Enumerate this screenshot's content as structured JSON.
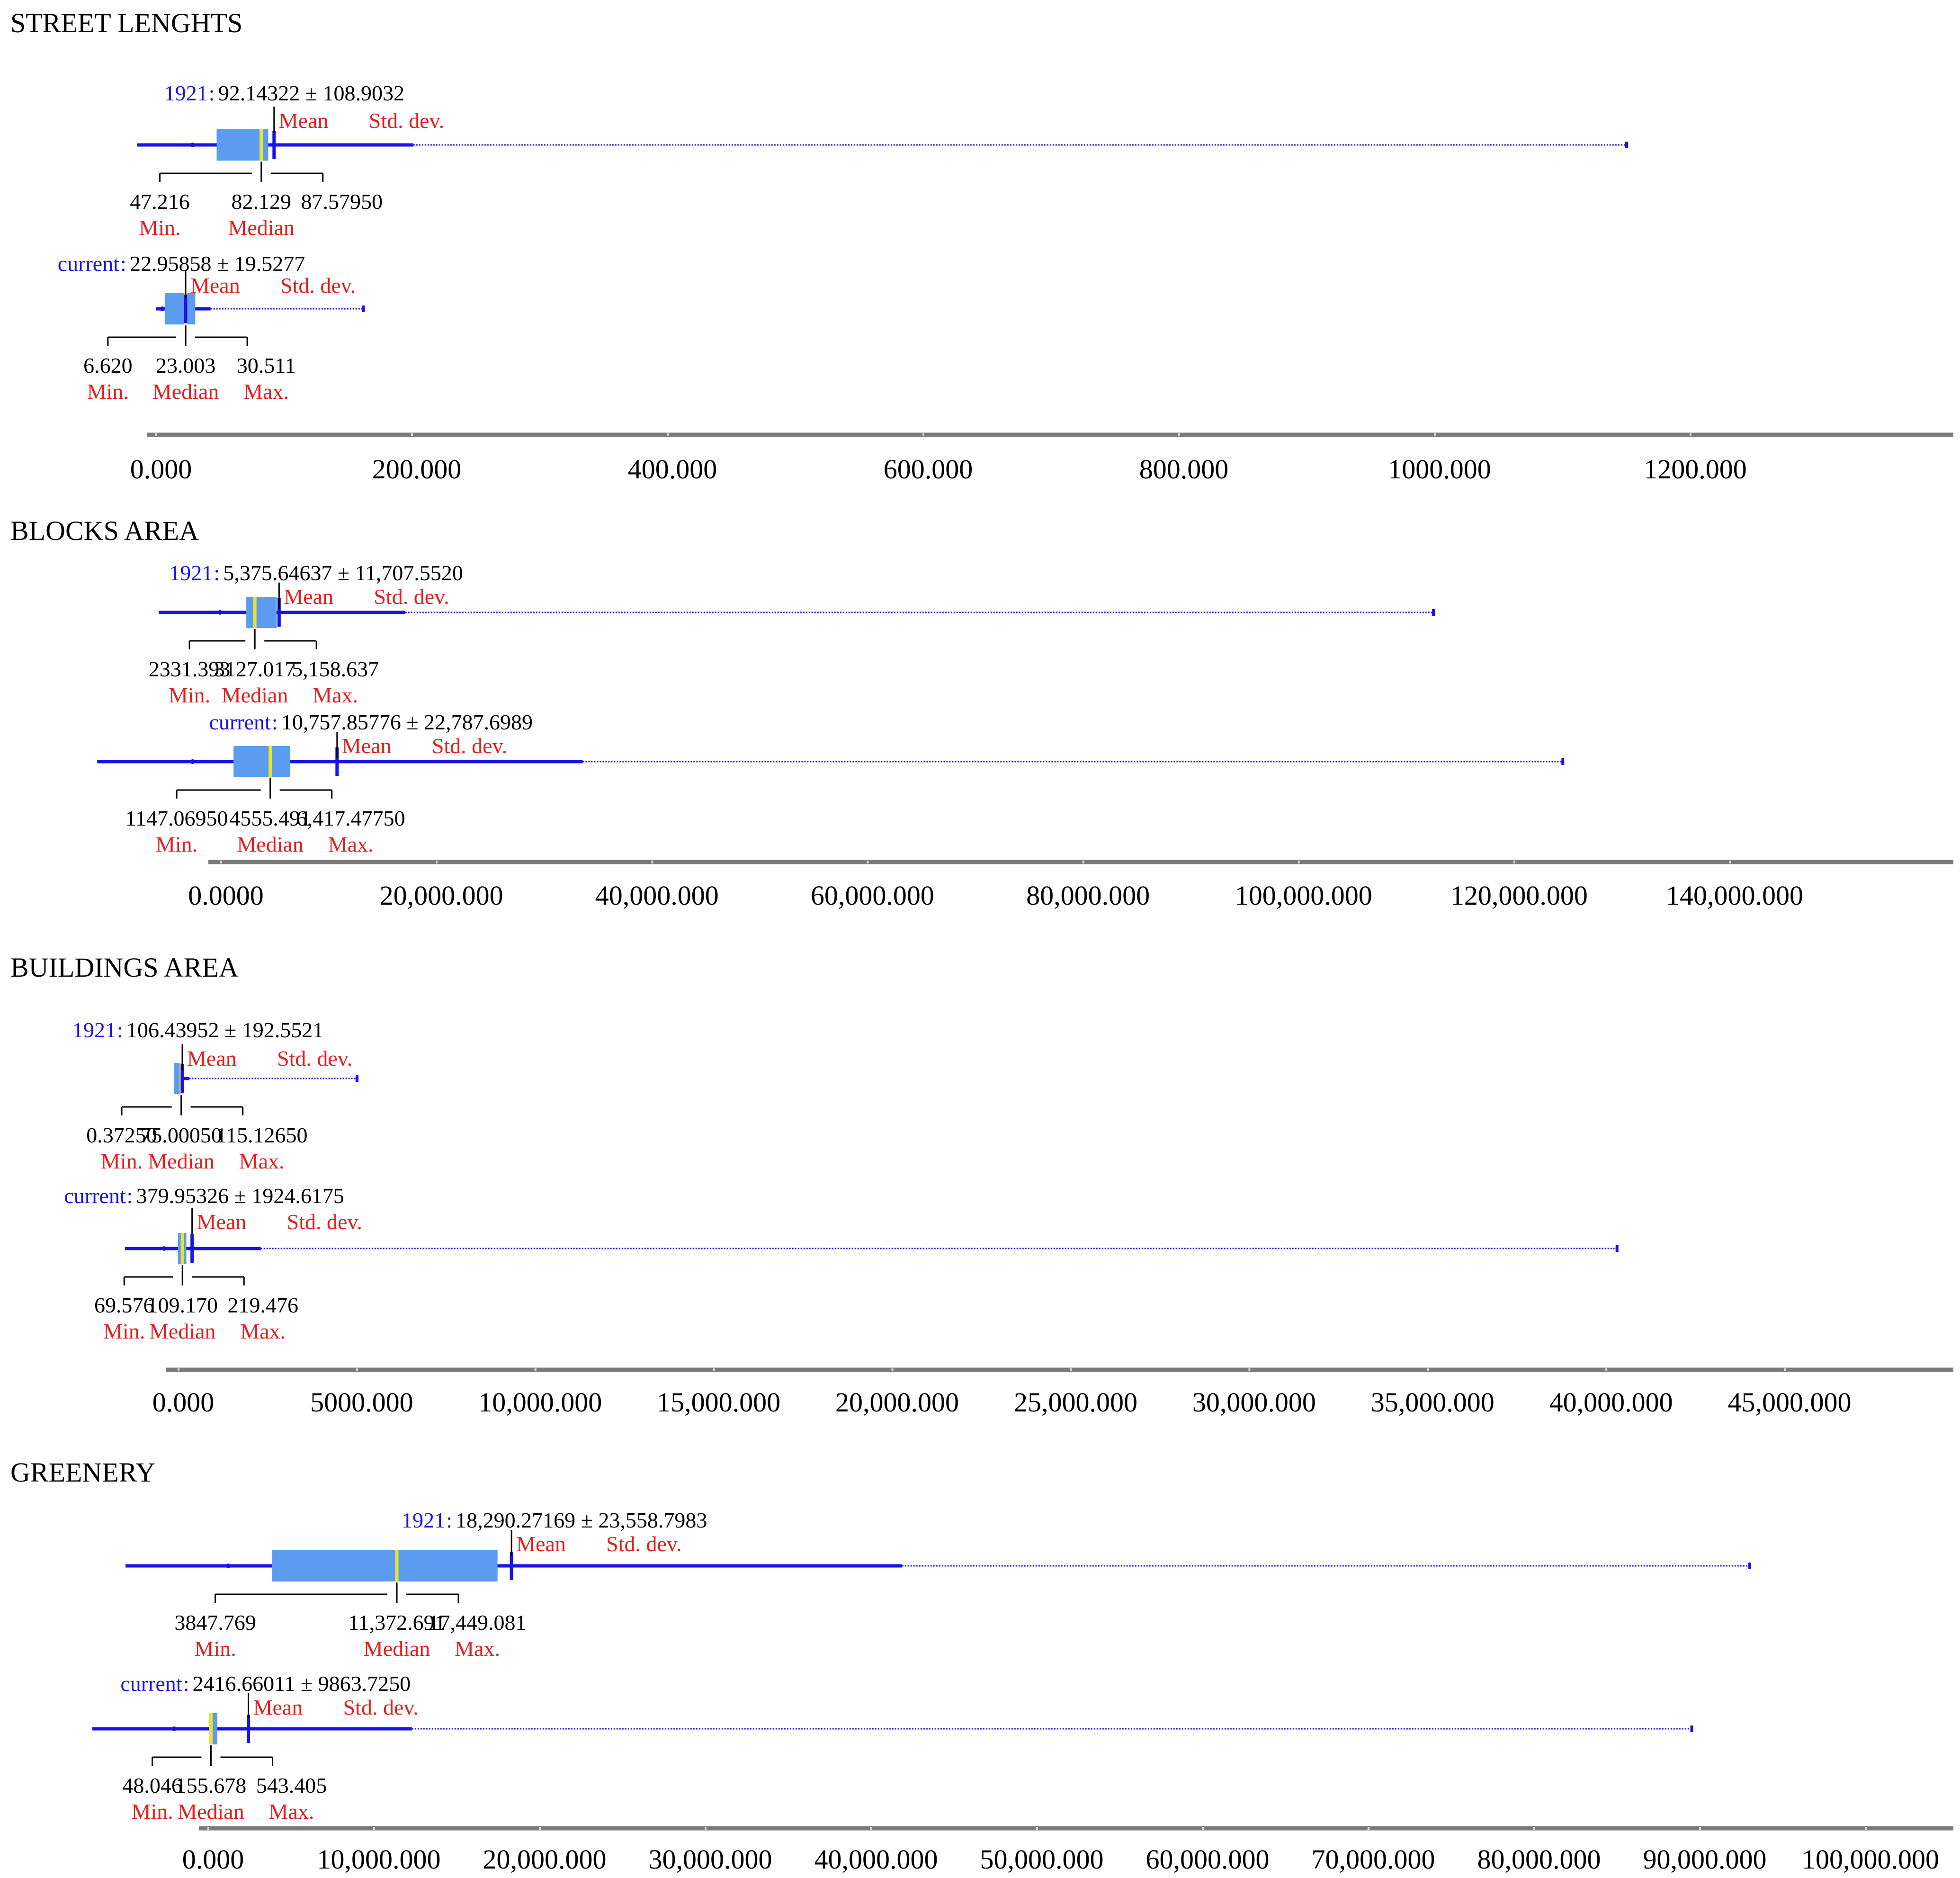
{
  "colors": {
    "whisker": "#1a12e6",
    "box": "#5b9cf0",
    "median_line": "#e6e630",
    "label_red": "#e31e1e",
    "label_blue": "#1a12e6",
    "text": "#000000",
    "axis": "#7a7a7a"
  },
  "chart_data": [
    {
      "type": "box",
      "title": "STREET LENGHTS",
      "axis_ticks": [
        "0.000",
        "200.000",
        "400.000",
        "600.000",
        "800.000",
        "1000.000",
        "1200.000"
      ],
      "groups": [
        {
          "name": "1921",
          "mean": 92.14322,
          "std": 108.9032,
          "stat_text": "92.14322 ± 108.9032",
          "min": 47.216,
          "median": 82.129,
          "max": 87.5795,
          "number_labels": [
            "47.216",
            "82.129",
            "87.57950"
          ],
          "word_labels": [
            "Min.",
            "Median",
            ""
          ],
          "mean_label": "Mean",
          "std_label": "Std. dev.",
          "range": [
            -15,
            1150
          ]
        },
        {
          "name": "current",
          "mean": 22.95858,
          "std": 19.5277,
          "stat_text": "22.95858 ± 19.5277",
          "min": 6.62,
          "median": 23.003,
          "max": 30.511,
          "number_labels": [
            "6.620",
            "23.003",
            "30.511"
          ],
          "word_labels": [
            "Min.",
            "Median",
            "Max."
          ],
          "mean_label": "Mean",
          "std_label": "Std. dev.",
          "range": [
            0,
            162
          ]
        }
      ]
    },
    {
      "type": "box",
      "title": "BLOCKS AREA",
      "axis_ticks": [
        "0.0000",
        "20,000.000",
        "40,000.000",
        "60,000.000",
        "80,000.000",
        "100,000.000",
        "120,000.000",
        "140,000.000"
      ],
      "groups": [
        {
          "name": "1921",
          "mean": 5375.64637,
          "std": 11707.552,
          "stat_text": "5,375.64637 ± 11,707.5520",
          "min": 2331.393,
          "median": 3127.017,
          "max": 5158.637,
          "number_labels": [
            "2331.393",
            "3127.017",
            "5,158.637"
          ],
          "word_labels": [
            "Min.",
            "Median",
            "Max."
          ],
          "mean_label": "Mean",
          "std_label": "Std. dev.",
          "range": [
            -5800,
            112500
          ]
        },
        {
          "name": "current",
          "mean": 10757.85776,
          "std": 22787.6989,
          "stat_text": "10,757.85776 ± 22,787.6989",
          "min": 1147.0695,
          "median": 4555.491,
          "max": 6417.4775,
          "number_labels": [
            "1147.06950",
            "4555.491",
            "6,417.47750"
          ],
          "word_labels": [
            "Min.",
            "Median",
            "Max."
          ],
          "mean_label": "Mean",
          "std_label": "Std. dev.",
          "range": [
            -11500,
            124500
          ]
        }
      ]
    },
    {
      "type": "box",
      "title": "BUILDINGS AREA",
      "axis_ticks": [
        "0.000",
        "5000.000",
        "10,000.000",
        "15,000.000",
        "20,000.000",
        "25,000.000",
        "30,000.000",
        "35,000.000",
        "40,000.000",
        "45,000.000"
      ],
      "groups": [
        {
          "name": "1921",
          "mean": 106.43952,
          "std": 192.5521,
          "stat_text": "106.43952 ± 192.5521",
          "min": 0.3725,
          "median": 75.0005,
          "max": 115.1265,
          "number_labels": [
            "0.37250",
            "75.00050",
            "115.12650"
          ],
          "word_labels": [
            "Min.",
            "Median",
            "Max."
          ],
          "mean_label": "Mean",
          "std_label": "Std. dev.",
          "range": [
            -100,
            5000
          ]
        },
        {
          "name": "current",
          "mean": 379.95326,
          "std": 1924.6175,
          "stat_text": "379.95326 ± 1924.6175",
          "min": 69.576,
          "median": 109.17,
          "max": 219.476,
          "number_labels": [
            "69.576",
            "109.170",
            "219.476"
          ],
          "word_labels": [
            "Min.",
            "Median",
            "Max."
          ],
          "mean_label": "Mean",
          "std_label": "Std. dev.",
          "range": [
            -1500,
            40300
          ]
        }
      ]
    },
    {
      "type": "box",
      "title": "GREENERY",
      "axis_ticks": [
        "0.000",
        "10,000.000",
        "20,000.000",
        "30,000.000",
        "40,000.000",
        "50,000.000",
        "60,000.000",
        "70,000.000",
        "80,000.000",
        "90,000.000",
        "100,000.000"
      ],
      "groups": [
        {
          "name": "1921",
          "mean": 18290.27169,
          "std": 23558.7983,
          "stat_text": "18,290.27169 ± 23,558.7983",
          "min": 3847.769,
          "median": 11372.691,
          "max": 17449.081,
          "number_labels": [
            "3847.769",
            "11,372.691",
            "17,449.081"
          ],
          "word_labels": [
            "Min.",
            "Median",
            "Max."
          ],
          "mean_label": "Mean",
          "std_label": "Std. dev.",
          "range": [
            -5000,
            93000
          ]
        },
        {
          "name": "current",
          "mean": 2416.66011,
          "std": 9863.725,
          "stat_text": "2416.66011 ± 9863.7250",
          "min": 48.046,
          "median": 155.678,
          "max": 543.405,
          "number_labels": [
            "48.046",
            "155.678",
            "543.405"
          ],
          "word_labels": [
            "Min.",
            "Median",
            "Max."
          ],
          "mean_label": "Mean",
          "std_label": "Std. dev.",
          "range": [
            -7000,
            89500
          ]
        }
      ]
    }
  ]
}
